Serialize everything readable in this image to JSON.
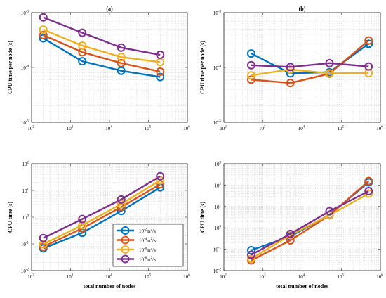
{
  "chart_data": [
    {
      "type": "line",
      "title": "(a)",
      "xlabel": "",
      "ylabel": "CPU time per node (s)",
      "xscale": "log",
      "yscale": "log",
      "xlim": [
        100,
        1000000
      ],
      "ylim": [
        1e-05,
        0.001
      ],
      "grid": true,
      "series": [
        {
          "x": [
            200,
            2000,
            20000,
            200000
          ],
          "y": [
            0.00034,
            0.00013,
            8.7e-05,
            6.7e-05
          ],
          "color": "#0072BD"
        },
        {
          "x": [
            200,
            2000,
            20000,
            200000
          ],
          "y": [
            0.00039,
            0.00019,
            0.00012,
            8.4e-05
          ],
          "color": "#D95319"
        },
        {
          "x": [
            200,
            2000,
            20000,
            200000
          ],
          "y": [
            0.00049,
            0.00025,
            0.000155,
            0.000125
          ],
          "color": "#EDB120"
        },
        {
          "x": [
            200,
            2000,
            20000,
            200000
          ],
          "y": [
            0.00082,
            0.00043,
            0.00023,
            0.00017
          ],
          "color": "#7E2F8E"
        }
      ]
    },
    {
      "type": "line",
      "title": "(b)",
      "xlabel": "",
      "ylabel": "CPU time per node (s)",
      "xscale": "log",
      "yscale": "log",
      "xlim": [
        100,
        1000000
      ],
      "ylim": [
        1e-05,
        0.001
      ],
      "grid": true,
      "series": [
        {
          "x": [
            500,
            5000,
            50000,
            500000
          ],
          "y": [
            0.00018,
            7.8e-05,
            8.2e-05,
            0.00027
          ],
          "color": "#0072BD"
        },
        {
          "x": [
            500,
            5000,
            50000,
            500000
          ],
          "y": [
            6e-05,
            5.2e-05,
            7.7e-05,
            0.00031
          ],
          "color": "#D95319"
        },
        {
          "x": [
            500,
            5000,
            50000,
            500000
          ],
          "y": [
            7.2e-05,
            9.2e-05,
            7.8e-05,
            7.9e-05
          ],
          "color": "#EDB120"
        },
        {
          "x": [
            500,
            5000,
            50000,
            500000
          ],
          "y": [
            0.00011,
            0.000102,
            0.00012,
            0.000104
          ],
          "color": "#7E2F8E"
        }
      ]
    },
    {
      "type": "line",
      "title": "",
      "xlabel": "total number of nodes",
      "ylabel": "CPU time (s)",
      "xscale": "log",
      "yscale": "log",
      "xlim": [
        100,
        1000000
      ],
      "ylim": [
        0.01,
        100
      ],
      "grid": true,
      "legend": {
        "position": "bottom-right",
        "entries": [
          {
            "base": "10",
            "exp": "-2",
            "unit": "m",
            "unit_exp": "2",
            "suffix": "/s",
            "color": "#0072BD"
          },
          {
            "base": "10",
            "exp": "-4",
            "unit": "m",
            "unit_exp": "2",
            "suffix": "/s",
            "color": "#D95319"
          },
          {
            "base": "10",
            "exp": "-6",
            "unit": "m",
            "unit_exp": "2",
            "suffix": "/s",
            "color": "#EDB120"
          },
          {
            "base": "10",
            "exp": "-8",
            "unit": "m",
            "unit_exp": "2",
            "suffix": "/s",
            "color": "#7E2F8E"
          }
        ]
      },
      "series": [
        {
          "x": [
            200,
            2000,
            20000,
            200000
          ],
          "y": [
            0.068,
            0.26,
            1.7,
            13
          ],
          "color": "#0072BD"
        },
        {
          "x": [
            200,
            2000,
            20000,
            200000
          ],
          "y": [
            0.078,
            0.38,
            2.4,
            17
          ],
          "color": "#D95319"
        },
        {
          "x": [
            200,
            2000,
            20000,
            200000
          ],
          "y": [
            0.098,
            0.5,
            3.1,
            24
          ],
          "color": "#EDB120"
        },
        {
          "x": [
            200,
            2000,
            20000,
            200000
          ],
          "y": [
            0.165,
            0.85,
            4.6,
            34
          ],
          "color": "#7E2F8E"
        }
      ]
    },
    {
      "type": "line",
      "title": "",
      "xlabel": "total number of nodes",
      "ylabel": "CPU time (s)",
      "xscale": "log",
      "yscale": "log",
      "xlim": [
        100,
        1000000
      ],
      "ylim": [
        0.01,
        1000
      ],
      "grid": true,
      "series": [
        {
          "x": [
            500,
            5000,
            50000,
            500000
          ],
          "y": [
            0.09,
            0.4,
            4.1,
            135
          ],
          "color": "#0072BD"
        },
        {
          "x": [
            500,
            5000,
            50000,
            500000
          ],
          "y": [
            0.03,
            0.26,
            3.9,
            155
          ],
          "color": "#D95319"
        },
        {
          "x": [
            500,
            5000,
            50000,
            500000
          ],
          "y": [
            0.036,
            0.46,
            3.9,
            40
          ],
          "color": "#EDB120"
        },
        {
          "x": [
            500,
            5000,
            50000,
            500000
          ],
          "y": [
            0.055,
            0.52,
            6.0,
            52
          ],
          "color": "#7E2F8E"
        }
      ]
    }
  ]
}
